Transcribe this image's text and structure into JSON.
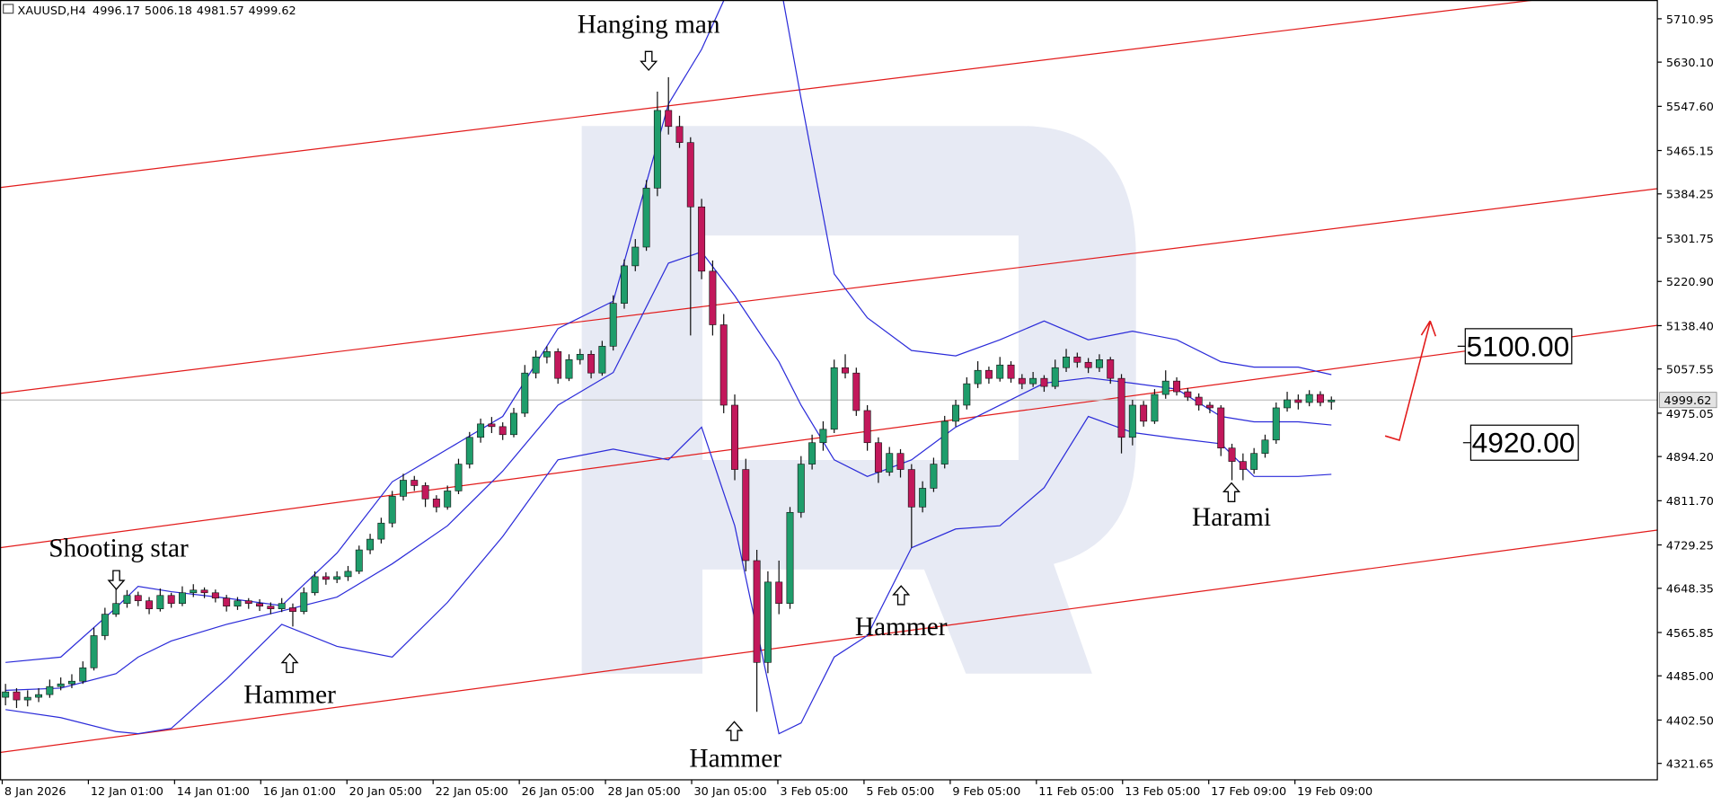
{
  "chart_data": {
    "type": "candlestick",
    "symbol": "XAUUSD,H4",
    "colors": {
      "up": "#1f9d6b",
      "down": "#c2185b",
      "bands": "#2b2bd9",
      "channel": "#e21b1b",
      "levels": "#000000"
    },
    "xlim": [
      -0.5,
      149.5
    ],
    "ylim": [
      4291,
      5746
    ],
    "yticks": [
      {
        "value": 5710.95,
        "label": "5710.95"
      },
      {
        "value": 5630.1,
        "label": "5630.10"
      },
      {
        "value": 5547.6,
        "label": "5547.60"
      },
      {
        "value": 5465.15,
        "label": "5465.15"
      },
      {
        "value": 5384.25,
        "label": "5384.25"
      },
      {
        "value": 5301.75,
        "label": "5301.75"
      },
      {
        "value": 5220.9,
        "label": "5220.90"
      },
      {
        "value": 5138.4,
        "label": "5138.40"
      },
      {
        "value": 5057.55,
        "label": "5057.55"
      },
      {
        "value": 4975.05,
        "label": "4975.05"
      },
      {
        "value": 4894.2,
        "label": "4894.20"
      },
      {
        "value": 4811.7,
        "label": "4811.70"
      },
      {
        "value": 4729.25,
        "label": "4729.25"
      },
      {
        "value": 4648.35,
        "label": "4648.35"
      },
      {
        "value": 4565.85,
        "label": "4565.85"
      },
      {
        "value": 4485,
        "label": "4485.00"
      },
      {
        "value": 4402.5,
        "label": "4402.50"
      },
      {
        "value": 4321.65,
        "label": "4321.65"
      }
    ],
    "xticks": [
      {
        "value": -0.3,
        "label": "8 Jan 2026"
      },
      {
        "value": 7.5,
        "label": "12 Jan 01:00"
      },
      {
        "value": 15.3,
        "label": "14 Jan 01:00"
      },
      {
        "value": 23.1,
        "label": "16 Jan 01:00"
      },
      {
        "value": 30.9,
        "label": "20 Jan 05:00"
      },
      {
        "value": 38.7,
        "label": "22 Jan 05:00"
      },
      {
        "value": 46.5,
        "label": "26 Jan 05:00"
      },
      {
        "value": 54.3,
        "label": "28 Jan 05:00"
      },
      {
        "value": 62.1,
        "label": "30 Jan 05:00"
      },
      {
        "value": 69.9,
        "label": "3 Feb 05:00"
      },
      {
        "value": 77.7,
        "label": "5 Feb 05:00"
      },
      {
        "value": 85.5,
        "label": "9 Feb 05:00"
      },
      {
        "value": 93.3,
        "label": "11 Feb 05:00"
      },
      {
        "value": 101.1,
        "label": "13 Feb 05:00"
      },
      {
        "value": 108.9,
        "label": "17 Feb 09:00"
      },
      {
        "value": 116.7,
        "label": "19 Feb 09:00"
      }
    ],
    "candles": [
      [
        4445,
        4470,
        4430,
        4455
      ],
      [
        4455,
        4462,
        4425,
        4440
      ],
      [
        4440,
        4458,
        4428,
        4445
      ],
      [
        4445,
        4462,
        4436,
        4450
      ],
      [
        4450,
        4478,
        4444,
        4465
      ],
      [
        4465,
        4482,
        4458,
        4470
      ],
      [
        4470,
        4488,
        4462,
        4475
      ],
      [
        4475,
        4512,
        4470,
        4500
      ],
      [
        4500,
        4575,
        4495,
        4560
      ],
      [
        4560,
        4612,
        4552,
        4600
      ],
      [
        4600,
        4665,
        4595,
        4620
      ],
      [
        4620,
        4645,
        4612,
        4635
      ],
      [
        4635,
        4642,
        4615,
        4625
      ],
      [
        4625,
        4632,
        4600,
        4610
      ],
      [
        4610,
        4648,
        4605,
        4635
      ],
      [
        4635,
        4640,
        4612,
        4620
      ],
      [
        4620,
        4652,
        4615,
        4640
      ],
      [
        4640,
        4656,
        4632,
        4645
      ],
      [
        4645,
        4650,
        4630,
        4640
      ],
      [
        4640,
        4646,
        4622,
        4630
      ],
      [
        4630,
        4636,
        4605,
        4615
      ],
      [
        4615,
        4632,
        4608,
        4625
      ],
      [
        4625,
        4630,
        4610,
        4620
      ],
      [
        4620,
        4628,
        4606,
        4615
      ],
      [
        4615,
        4622,
        4600,
        4610
      ],
      [
        4610,
        4630,
        4604,
        4620
      ],
      [
        4612,
        4620,
        4577,
        4605
      ],
      [
        4605,
        4650,
        4600,
        4640
      ],
      [
        4640,
        4680,
        4635,
        4670
      ],
      [
        4670,
        4678,
        4655,
        4665
      ],
      [
        4665,
        4680,
        4658,
        4670
      ],
      [
        4670,
        4690,
        4662,
        4680
      ],
      [
        4680,
        4728,
        4675,
        4720
      ],
      [
        4720,
        4750,
        4712,
        4740
      ],
      [
        4740,
        4780,
        4732,
        4770
      ],
      [
        4770,
        4830,
        4762,
        4820
      ],
      [
        4820,
        4862,
        4812,
        4850
      ],
      [
        4850,
        4858,
        4830,
        4840
      ],
      [
        4840,
        4846,
        4800,
        4815
      ],
      [
        4815,
        4822,
        4790,
        4800
      ],
      [
        4800,
        4840,
        4795,
        4830
      ],
      [
        4830,
        4890,
        4824,
        4880
      ],
      [
        4880,
        4940,
        4872,
        4930
      ],
      [
        4930,
        4965,
        4920,
        4955
      ],
      [
        4955,
        4968,
        4938,
        4950
      ],
      [
        4950,
        4958,
        4925,
        4935
      ],
      [
        4935,
        4985,
        4930,
        4975
      ],
      [
        4975,
        5065,
        4968,
        5050
      ],
      [
        5050,
        5092,
        5040,
        5080
      ],
      [
        5080,
        5100,
        5068,
        5090
      ],
      [
        5090,
        5096,
        5030,
        5040
      ],
      [
        5040,
        5085,
        5035,
        5075
      ],
      [
        5075,
        5095,
        5066,
        5085
      ],
      [
        5085,
        5092,
        5040,
        5050
      ],
      [
        5050,
        5110,
        5045,
        5100
      ],
      [
        5100,
        5195,
        5092,
        5180
      ],
      [
        5180,
        5262,
        5170,
        5250
      ],
      [
        5250,
        5300,
        5240,
        5285
      ],
      [
        5285,
        5410,
        5278,
        5395
      ],
      [
        5395,
        5575,
        5380,
        5540
      ],
      [
        5540,
        5602,
        5495,
        5510
      ],
      [
        5510,
        5530,
        5470,
        5480
      ],
      [
        5480,
        5490,
        5120,
        5360
      ],
      [
        5360,
        5375,
        5225,
        5240
      ],
      [
        5240,
        5260,
        5120,
        5140
      ],
      [
        5140,
        5160,
        4975,
        4990
      ],
      [
        4990,
        5010,
        4850,
        4870
      ],
      [
        4870,
        4890,
        4680,
        4700
      ],
      [
        4700,
        4720,
        4418,
        4510
      ],
      [
        4510,
        4680,
        4490,
        4660
      ],
      [
        4660,
        4700,
        4600,
        4620
      ],
      [
        4620,
        4800,
        4610,
        4790
      ],
      [
        4790,
        4895,
        4780,
        4880
      ],
      [
        4880,
        4935,
        4870,
        4920
      ],
      [
        4920,
        4960,
        4905,
        4945
      ],
      [
        4945,
        5075,
        4938,
        5060
      ],
      [
        5060,
        5085,
        5040,
        5050
      ],
      [
        5050,
        5060,
        4970,
        4980
      ],
      [
        4980,
        4990,
        4905,
        4920
      ],
      [
        4920,
        4930,
        4845,
        4865
      ],
      [
        4865,
        4912,
        4858,
        4900
      ],
      [
        4900,
        4908,
        4855,
        4870
      ],
      [
        4870,
        4880,
        4724,
        4800
      ],
      [
        4800,
        4848,
        4790,
        4835
      ],
      [
        4835,
        4892,
        4828,
        4880
      ],
      [
        4880,
        4970,
        4872,
        4960
      ],
      [
        4960,
        5000,
        4950,
        4990
      ],
      [
        4990,
        5042,
        4982,
        5030
      ],
      [
        5030,
        5072,
        5022,
        5055
      ],
      [
        5055,
        5062,
        5030,
        5040
      ],
      [
        5040,
        5080,
        5034,
        5065
      ],
      [
        5065,
        5072,
        5032,
        5040
      ],
      [
        5040,
        5048,
        5020,
        5030
      ],
      [
        5030,
        5052,
        5024,
        5040
      ],
      [
        5040,
        5046,
        5015,
        5025
      ],
      [
        5025,
        5075,
        5020,
        5060
      ],
      [
        5060,
        5095,
        5052,
        5080
      ],
      [
        5080,
        5088,
        5060,
        5070
      ],
      [
        5070,
        5078,
        5050,
        5060
      ],
      [
        5060,
        5085,
        5052,
        5075
      ],
      [
        5075,
        5080,
        5030,
        5040
      ],
      [
        5040,
        5048,
        4900,
        4930
      ],
      [
        4930,
        5000,
        4915,
        4990
      ],
      [
        4990,
        4998,
        4950,
        4960
      ],
      [
        4960,
        5020,
        4955,
        5010
      ],
      [
        5010,
        5055,
        5002,
        5035
      ],
      [
        5035,
        5042,
        5008,
        5015
      ],
      [
        5015,
        5022,
        4998,
        5005
      ],
      [
        5005,
        5012,
        4980,
        4990
      ],
      [
        4990,
        4996,
        4975,
        4985
      ],
      [
        4985,
        4990,
        4895,
        4910
      ],
      [
        4910,
        4918,
        4850,
        4885
      ],
      [
        4885,
        4900,
        4850,
        4870
      ],
      [
        4870,
        4910,
        4862,
        4900
      ],
      [
        4900,
        4935,
        4892,
        4925
      ],
      [
        4925,
        4995,
        4918,
        4985
      ],
      [
        4985,
        5015,
        4978,
        5000
      ],
      [
        5000,
        5010,
        4982,
        4995
      ],
      [
        4995,
        5018,
        4988,
        5010
      ],
      [
        5010,
        5016,
        4988,
        4995
      ],
      [
        4996.17,
        5006.18,
        4981.57,
        4999.62
      ]
    ],
    "bands": {
      "x": [
        0,
        5,
        10,
        12,
        15,
        20,
        25,
        30,
        35,
        40,
        45,
        50,
        55,
        60,
        63,
        66,
        70,
        72,
        75,
        78,
        82,
        86,
        90,
        94,
        98,
        102,
        106,
        110,
        113,
        117,
        120
      ],
      "upper": [
        4510,
        4520,
        4612,
        4652,
        4642,
        4630,
        4616,
        4714,
        4847,
        4908,
        4969,
        5133,
        5184,
        5552,
        5654,
        5790,
        5790,
        5562,
        5235,
        5153,
        5092,
        5082,
        5112,
        5147,
        5112,
        5128,
        5112,
        5071,
        5061,
        5061,
        5047
      ],
      "middle": [
        4458,
        4462,
        4489,
        4520,
        4550,
        4581,
        4606,
        4632,
        4694,
        4765,
        4867,
        4990,
        5051,
        5255,
        5276,
        5194,
        5071,
        4990,
        4888,
        4857,
        4888,
        4949,
        4990,
        5031,
        5041,
        5031,
        5020,
        4969,
        4959,
        4959,
        4953
      ],
      "lower": [
        4422,
        4407,
        4381,
        4377,
        4387,
        4479,
        4581,
        4540,
        4520,
        4622,
        4745,
        4888,
        4908,
        4888,
        4949,
        4765,
        4377,
        4397,
        4520,
        4560,
        4724,
        4759,
        4765,
        4836,
        4969,
        4939,
        4928,
        4918,
        4857,
        4857,
        4861
      ]
    },
    "channel": {
      "x": [
        -0.5,
        149.5
      ],
      "lines": [
        [
          5396,
          5774
        ],
        [
          5012,
          5394
        ],
        [
          4724,
          5139
        ],
        [
          4342,
          4757
        ]
      ]
    },
    "levels": [
      {
        "value": 5100,
        "label": "5100.00"
      },
      {
        "value": 4920,
        "label": "4920.00"
      }
    ],
    "patterns": [
      "Shooting star",
      "Hammer",
      "Hanging man",
      "Hammer",
      "Hammer",
      "Harami"
    ]
  }
}
